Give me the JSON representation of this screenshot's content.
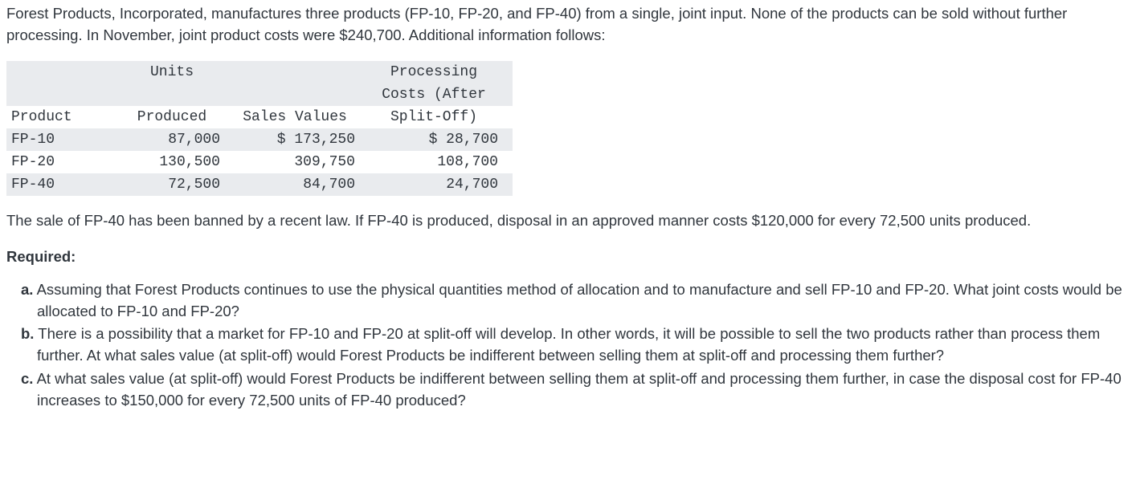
{
  "intro": "Forest Products, Incorporated, manufactures three products (FP-10, FP-20, and FP-40) from a single, joint input. None of the products can be sold without further processing. In November, joint product costs were $240,700. Additional information follows:",
  "table": {
    "headers": {
      "product": "Product",
      "units": "Units Produced",
      "units_l1": "Units",
      "units_l2": "Produced",
      "sales": "Sales Values",
      "proc_l1": "Processing",
      "proc_l2": "Costs (After",
      "proc_l3": "Split-Off)"
    },
    "rows": [
      {
        "product": "FP-10",
        "units": "87,000",
        "sales": "$ 173,250",
        "proc": "$ 28,700"
      },
      {
        "product": "FP-20",
        "units": "130,500",
        "sales": "309,750",
        "proc": "108,700"
      },
      {
        "product": "FP-40",
        "units": "72,500",
        "sales": "84,700",
        "proc": "24,700"
      }
    ],
    "header_bg": "#e9ebee",
    "alt_bg": "#ffffff",
    "font": "Courier New",
    "font_size_pt": 14
  },
  "ban_text": "The sale of FP-40 has been banned by a recent law. If FP-40 is produced, disposal in an approved manner costs $120,000 for every 72,500 units produced.",
  "required_label": "Required:",
  "questions": {
    "a_marker": "a.",
    "a": "Assuming that Forest Products continues to use the physical quantities method of allocation and to manufacture and sell FP-10 and FP-20. What joint costs would be allocated to FP-10 and FP-20?",
    "b_marker": "b.",
    "b": "There is a possibility that a market for FP-10 and FP-20 at split-off will develop. In other words, it will be possible to sell the two products rather than process them further. At what sales value (at split-off) would Forest Products be indifferent between selling them at split-off and processing them further?",
    "c_marker": "c.",
    "c": "At what sales value (at split-off) would Forest Products be indifferent between selling them at split-off and processing them further, in case the disposal cost for FP-40 increases to $150,000 for every 72,500 units of FP-40 produced?"
  },
  "colors": {
    "text": "#30363d",
    "background": "#ffffff",
    "table_gray": "#e9ebee"
  }
}
